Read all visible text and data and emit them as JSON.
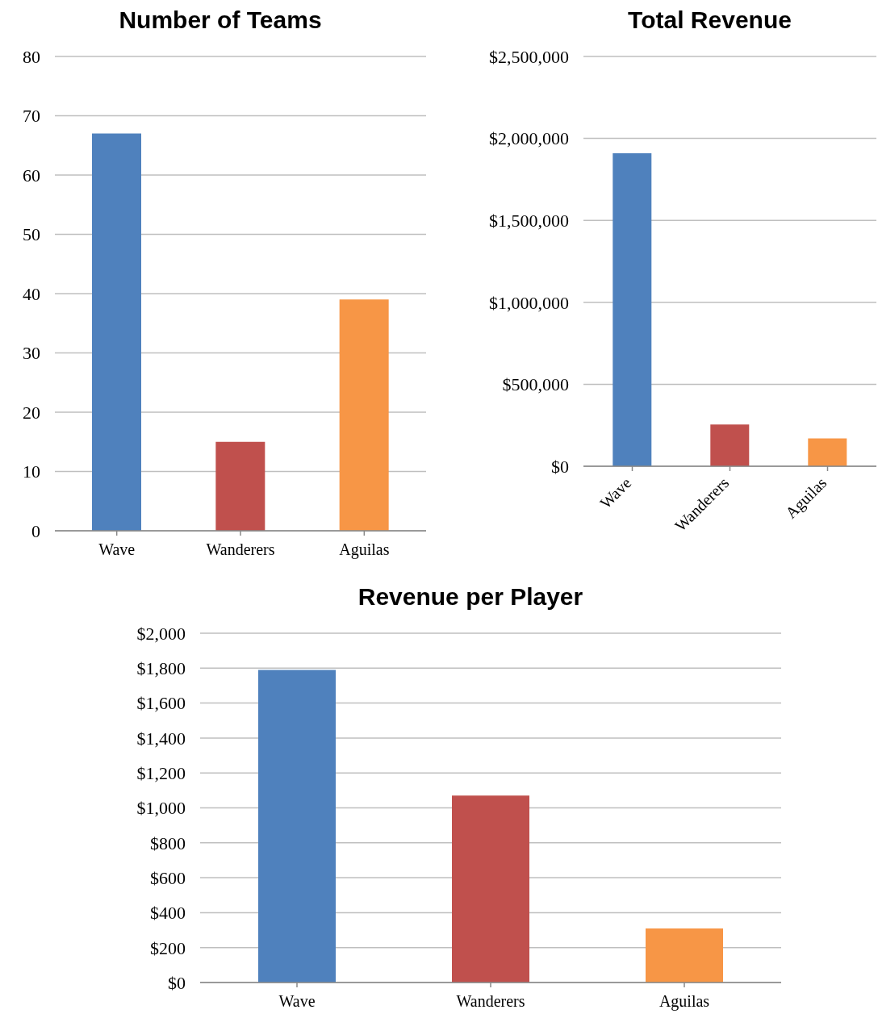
{
  "chart_data": [
    {
      "type": "bar",
      "title": "Number of Teams",
      "categories": [
        "Wave",
        "Wanderers",
        "Aguilas"
      ],
      "values": [
        67,
        15,
        39
      ],
      "colors": [
        "#4f81bd",
        "#c0504d",
        "#f79646"
      ],
      "ylim": [
        0,
        80
      ],
      "yticks": [
        0,
        10,
        20,
        30,
        40,
        50,
        60,
        70,
        80
      ],
      "grid": "y",
      "legend": false
    },
    {
      "type": "bar",
      "title": "Total Revenue",
      "categories": [
        "Wave",
        "Wanderers",
        "Aguilas"
      ],
      "values": [
        1910000,
        255000,
        170000
      ],
      "colors": [
        "#4f81bd",
        "#c0504d",
        "#f79646"
      ],
      "ylim": [
        0,
        2500000
      ],
      "yticks": [
        {
          "value": 0,
          "label": "$0"
        },
        {
          "value": 500000,
          "label": "$500,000"
        },
        {
          "value": 1000000,
          "label": "$1,000,000"
        },
        {
          "value": 1500000,
          "label": "$1,500,000"
        },
        {
          "value": 2000000,
          "label": "$2,000,000"
        },
        {
          "value": 2500000,
          "label": "$2,500,000"
        }
      ],
      "grid": "y",
      "legend": false
    },
    {
      "type": "bar",
      "title": "Revenue per Player",
      "categories": [
        "Wave",
        "Wanderers",
        "Aguilas"
      ],
      "values": [
        1790,
        1070,
        310
      ],
      "colors": [
        "#4f81bd",
        "#c0504d",
        "#f79646"
      ],
      "ylim": [
        0,
        2000
      ],
      "yticks": [
        {
          "value": 0,
          "label": "$0"
        },
        {
          "value": 200,
          "label": "$200"
        },
        {
          "value": 400,
          "label": "$400"
        },
        {
          "value": 600,
          "label": "$600"
        },
        {
          "value": 800,
          "label": "$800"
        },
        {
          "value": 1000,
          "label": "$1,000"
        },
        {
          "value": 1200,
          "label": "$1,200"
        },
        {
          "value": 1400,
          "label": "$1,400"
        },
        {
          "value": 1600,
          "label": "$1,600"
        },
        {
          "value": 1800,
          "label": "$1,800"
        },
        {
          "value": 2000,
          "label": "$2,000"
        }
      ],
      "grid": "y",
      "legend": false
    }
  ]
}
